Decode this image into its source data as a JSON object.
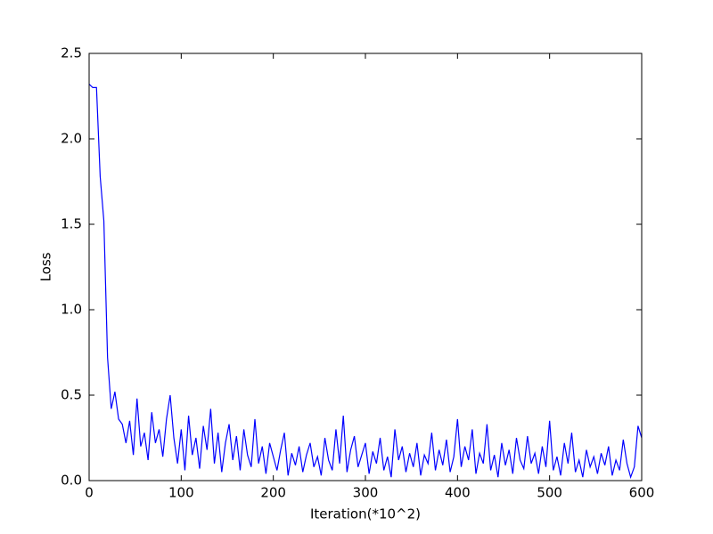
{
  "chart_data": {
    "type": "line",
    "xlabel": "Iteration(*10^2)",
    "ylabel": "Loss",
    "x": [
      0,
      4,
      8,
      12,
      16,
      20,
      24,
      28,
      32,
      36,
      40,
      44,
      48,
      52,
      56,
      60,
      64,
      68,
      72,
      76,
      80,
      84,
      88,
      92,
      96,
      100,
      104,
      108,
      112,
      116,
      120,
      124,
      128,
      132,
      136,
      140,
      144,
      148,
      152,
      156,
      160,
      164,
      168,
      172,
      176,
      180,
      184,
      188,
      192,
      196,
      200,
      204,
      208,
      212,
      216,
      220,
      224,
      228,
      232,
      236,
      240,
      244,
      248,
      252,
      256,
      260,
      264,
      268,
      272,
      276,
      280,
      284,
      288,
      292,
      296,
      300,
      304,
      308,
      312,
      316,
      320,
      324,
      328,
      332,
      336,
      340,
      344,
      348,
      352,
      356,
      360,
      364,
      368,
      372,
      376,
      380,
      384,
      388,
      392,
      396,
      400,
      404,
      408,
      412,
      416,
      420,
      424,
      428,
      432,
      436,
      440,
      444,
      448,
      452,
      456,
      460,
      464,
      468,
      472,
      476,
      480,
      484,
      488,
      492,
      496,
      500,
      504,
      508,
      512,
      516,
      520,
      524,
      528,
      532,
      536,
      540,
      544,
      548,
      552,
      556,
      560,
      564,
      568,
      572,
      576,
      580,
      584,
      588,
      592,
      596,
      600
    ],
    "series": [
      {
        "color": "#0000ff",
        "values": [
          2.32,
          2.3,
          2.3,
          1.78,
          1.52,
          0.72,
          0.42,
          0.52,
          0.36,
          0.33,
          0.22,
          0.35,
          0.15,
          0.48,
          0.2,
          0.28,
          0.12,
          0.4,
          0.22,
          0.3,
          0.14,
          0.36,
          0.5,
          0.25,
          0.1,
          0.3,
          0.06,
          0.38,
          0.15,
          0.25,
          0.07,
          0.32,
          0.18,
          0.42,
          0.1,
          0.28,
          0.05,
          0.22,
          0.33,
          0.12,
          0.26,
          0.06,
          0.3,
          0.15,
          0.08,
          0.36,
          0.1,
          0.2,
          0.04,
          0.22,
          0.14,
          0.06,
          0.18,
          0.28,
          0.03,
          0.16,
          0.09,
          0.2,
          0.05,
          0.15,
          0.22,
          0.08,
          0.14,
          0.03,
          0.25,
          0.12,
          0.06,
          0.3,
          0.1,
          0.38,
          0.05,
          0.18,
          0.26,
          0.08,
          0.15,
          0.22,
          0.04,
          0.17,
          0.1,
          0.25,
          0.06,
          0.14,
          0.02,
          0.3,
          0.12,
          0.2,
          0.05,
          0.16,
          0.08,
          0.22,
          0.03,
          0.15,
          0.1,
          0.28,
          0.06,
          0.18,
          0.09,
          0.24,
          0.05,
          0.14,
          0.36,
          0.08,
          0.2,
          0.12,
          0.3,
          0.04,
          0.16,
          0.1,
          0.33,
          0.06,
          0.15,
          0.02,
          0.22,
          0.09,
          0.18,
          0.04,
          0.25,
          0.12,
          0.07,
          0.26,
          0.1,
          0.16,
          0.04,
          0.2,
          0.08,
          0.35,
          0.06,
          0.14,
          0.03,
          0.22,
          0.1,
          0.28,
          0.05,
          0.12,
          0.02,
          0.18,
          0.08,
          0.14,
          0.04,
          0.16,
          0.09,
          0.2,
          0.03,
          0.12,
          0.06,
          0.24,
          0.1,
          0.02,
          0.08,
          0.32,
          0.25
        ]
      }
    ],
    "xlim": [
      0,
      600
    ],
    "xticks": [
      0,
      100,
      200,
      300,
      400,
      500,
      600
    ],
    "ylim": [
      0,
      2.5
    ],
    "yticks": [
      {
        "value": 0,
        "label": "0.0"
      },
      0.5,
      {
        "value": 1,
        "label": "1.0"
      },
      1.5,
      {
        "value": 2,
        "label": "2.0"
      },
      2.5
    ]
  }
}
